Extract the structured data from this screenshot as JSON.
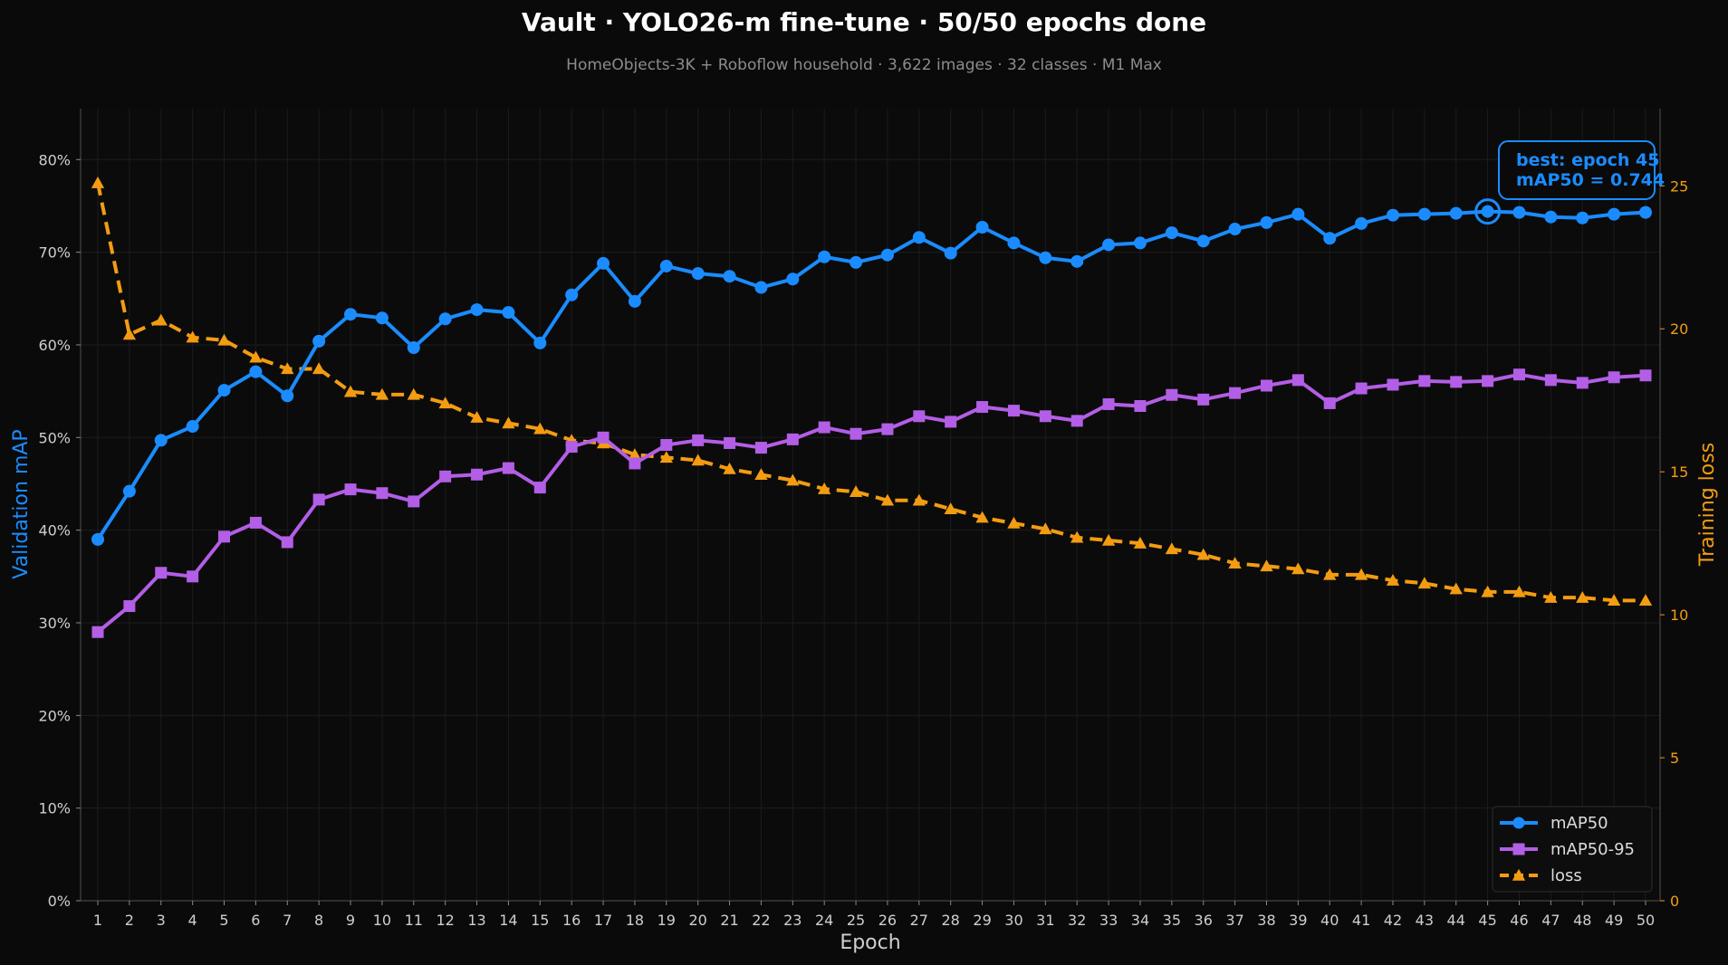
{
  "chart_data": {
    "type": "line",
    "title": "Vault · YOLO26-m fine-tune  ·  50/50 epochs done",
    "subtitle": "HomeObjects-3K + Roboflow household · 3,622 images · 32 classes · M1 Max",
    "xlabel": "Epoch",
    "ylabel_left": "Validation mAP",
    "ylabel_right": "Training loss",
    "x": [
      1,
      2,
      3,
      4,
      5,
      6,
      7,
      8,
      9,
      10,
      11,
      12,
      13,
      14,
      15,
      16,
      17,
      18,
      19,
      20,
      21,
      22,
      23,
      24,
      25,
      26,
      27,
      28,
      29,
      30,
      31,
      32,
      33,
      34,
      35,
      36,
      37,
      38,
      39,
      40,
      41,
      42,
      43,
      44,
      45,
      46,
      47,
      48,
      49,
      50
    ],
    "ylim_left": [
      0,
      0.855
    ],
    "ylim_right": [
      0,
      27.7
    ],
    "left_ticks": [
      0,
      0.1,
      0.2,
      0.3,
      0.4,
      0.5,
      0.6,
      0.7,
      0.8
    ],
    "left_tick_labels": [
      "0%",
      "10%",
      "20%",
      "30%",
      "40%",
      "50%",
      "60%",
      "70%",
      "80%"
    ],
    "right_ticks": [
      0,
      5,
      10,
      15,
      20,
      25
    ],
    "right_tick_labels": [
      "0",
      "5",
      "10",
      "15",
      "20",
      "25"
    ],
    "grid": true,
    "legend_position": "bottom-right",
    "series": [
      {
        "name": "mAP50",
        "axis": "left",
        "color": "#1a8cff",
        "marker": "circle",
        "dash": "solid",
        "values": [
          0.39,
          0.442,
          0.497,
          0.512,
          0.551,
          0.571,
          0.545,
          0.604,
          0.633,
          0.629,
          0.597,
          0.628,
          0.638,
          0.635,
          0.602,
          0.654,
          0.688,
          0.647,
          0.685,
          0.677,
          0.674,
          0.662,
          0.671,
          0.695,
          0.689,
          0.697,
          0.716,
          0.699,
          0.727,
          0.71,
          0.694,
          0.69,
          0.708,
          0.71,
          0.721,
          0.712,
          0.725,
          0.732,
          0.741,
          0.715,
          0.731,
          0.74,
          0.741,
          0.742,
          0.744,
          0.743,
          0.738,
          0.737,
          0.741,
          0.743
        ]
      },
      {
        "name": "mAP50-95",
        "axis": "left",
        "color": "#b35ee6",
        "marker": "square",
        "dash": "solid",
        "values": [
          0.29,
          0.318,
          0.354,
          0.35,
          0.393,
          0.408,
          0.387,
          0.433,
          0.444,
          0.44,
          0.431,
          0.458,
          0.46,
          0.467,
          0.446,
          0.49,
          0.5,
          0.472,
          0.492,
          0.497,
          0.494,
          0.489,
          0.498,
          0.511,
          0.504,
          0.509,
          0.523,
          0.517,
          0.533,
          0.529,
          0.523,
          0.518,
          0.536,
          0.534,
          0.546,
          0.541,
          0.548,
          0.556,
          0.562,
          0.537,
          0.553,
          0.557,
          0.561,
          0.56,
          0.561,
          0.568,
          0.562,
          0.559,
          0.565,
          0.567
        ]
      },
      {
        "name": "loss",
        "axis": "right",
        "color": "#f39c12",
        "marker": "triangle",
        "dash": "dashed",
        "values": [
          25.1,
          19.8,
          20.3,
          19.7,
          19.6,
          19.0,
          18.6,
          18.6,
          17.8,
          17.7,
          17.7,
          17.4,
          16.9,
          16.7,
          16.5,
          16.1,
          16.0,
          15.6,
          15.5,
          15.4,
          15.1,
          14.9,
          14.7,
          14.4,
          14.3,
          14.0,
          14.0,
          13.7,
          13.4,
          13.2,
          13.0,
          12.7,
          12.6,
          12.5,
          12.3,
          12.1,
          11.8,
          11.7,
          11.6,
          11.4,
          11.4,
          11.2,
          11.1,
          10.9,
          10.8,
          10.8,
          10.6,
          10.6,
          10.5,
          10.5
        ]
      }
    ],
    "annotation": {
      "line1": "best:  epoch 45",
      "line2": "mAP50 = 0.744",
      "epoch": 45,
      "value": 0.744,
      "color": "#1a8cff"
    }
  },
  "colors": {
    "background": "#0a0a0a",
    "grid": "#1c1c1c",
    "axis": "#3a3a3a",
    "left_axis_label": "#1a8cff",
    "right_axis_label": "#f39c12"
  }
}
